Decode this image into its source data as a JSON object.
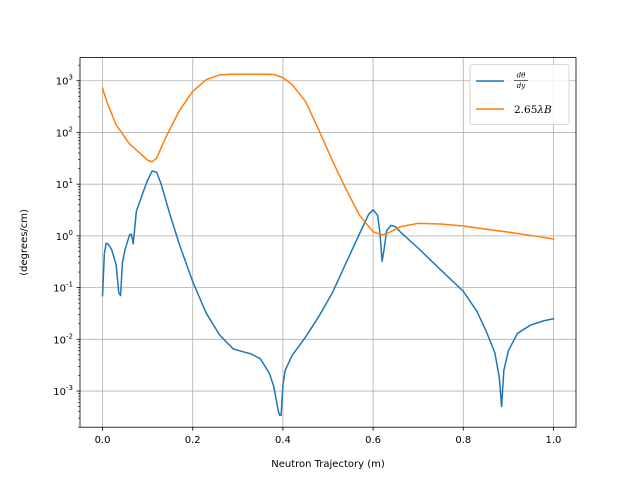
{
  "chart_data": {
    "type": "line",
    "title": "",
    "xlabel": "Neutron Trajectory (m)",
    "ylabel": "(degrees/cm)",
    "xlim": [
      -0.05,
      1.05
    ],
    "ylim": [
      0.0002,
      2800
    ],
    "yscale": "log",
    "grid": true,
    "legend": "top-right",
    "x_ticks": [
      "0.0",
      "0.2",
      "0.4",
      "0.6",
      "0.8",
      "1.0"
    ],
    "x_tick_values": [
      0.0,
      0.2,
      0.4,
      0.6,
      0.8,
      1.0
    ],
    "y_tick_values": [
      0.001,
      0.01,
      0.1,
      1,
      10,
      100,
      1000
    ],
    "y_tick_exponents": [
      "-3",
      "-2",
      "-1",
      "0",
      "1",
      "2",
      "3"
    ],
    "y_tick_base": "10",
    "series": [
      {
        "name": "dθ/dy",
        "legend_numerator": "dθ",
        "legend_denominator": "dy",
        "color": "#1f77b4",
        "x": [
          0.0,
          0.004,
          0.008,
          0.012,
          0.02,
          0.03,
          0.036,
          0.04,
          0.044,
          0.05,
          0.06,
          0.064,
          0.068,
          0.075,
          0.09,
          0.1,
          0.11,
          0.12,
          0.13,
          0.15,
          0.17,
          0.2,
          0.23,
          0.26,
          0.29,
          0.31,
          0.33,
          0.35,
          0.37,
          0.38,
          0.39,
          0.393,
          0.396,
          0.4,
          0.405,
          0.42,
          0.45,
          0.48,
          0.51,
          0.54,
          0.57,
          0.59,
          0.6,
          0.61,
          0.615,
          0.62,
          0.625,
          0.63,
          0.64,
          0.65,
          0.66,
          0.7,
          0.75,
          0.8,
          0.83,
          0.85,
          0.87,
          0.88,
          0.885,
          0.89,
          0.9,
          0.92,
          0.95,
          0.98,
          1.0
        ],
        "y": [
          0.07,
          0.45,
          0.72,
          0.7,
          0.55,
          0.28,
          0.08,
          0.07,
          0.3,
          0.55,
          1.05,
          1.08,
          0.7,
          3.0,
          7.0,
          12.0,
          18.0,
          17.0,
          10.0,
          2.5,
          0.7,
          0.13,
          0.032,
          0.012,
          0.0065,
          0.0058,
          0.0052,
          0.0042,
          0.0022,
          0.0012,
          0.0004,
          0.00034,
          0.00034,
          0.0013,
          0.0025,
          0.0048,
          0.011,
          0.028,
          0.08,
          0.3,
          1.1,
          2.6,
          3.2,
          2.5,
          1.2,
          0.32,
          0.6,
          1.25,
          1.6,
          1.5,
          1.2,
          0.58,
          0.22,
          0.085,
          0.035,
          0.015,
          0.0055,
          0.0018,
          0.0005,
          0.0025,
          0.006,
          0.013,
          0.019,
          0.023,
          0.025
        ]
      },
      {
        "name": "2.65λB",
        "legend_prefix": "2.65",
        "legend_lambda": "λ",
        "legend_b": "B",
        "color": "#ff7f0e",
        "x": [
          0.0,
          0.01,
          0.03,
          0.06,
          0.09,
          0.1,
          0.11,
          0.12,
          0.14,
          0.17,
          0.2,
          0.23,
          0.26,
          0.29,
          0.32,
          0.35,
          0.38,
          0.4,
          0.42,
          0.45,
          0.48,
          0.51,
          0.54,
          0.57,
          0.6,
          0.62,
          0.63,
          0.66,
          0.7,
          0.75,
          0.8,
          0.85,
          0.9,
          0.95,
          1.0
        ],
        "y": [
          720,
          380,
          140,
          60,
          35,
          29,
          27,
          32,
          80,
          260,
          620,
          1050,
          1300,
          1340,
          1340,
          1340,
          1320,
          1150,
          850,
          400,
          110,
          28,
          8,
          2.5,
          1.2,
          1.05,
          1.1,
          1.5,
          1.75,
          1.7,
          1.55,
          1.35,
          1.18,
          1.02,
          0.87
        ]
      }
    ]
  }
}
